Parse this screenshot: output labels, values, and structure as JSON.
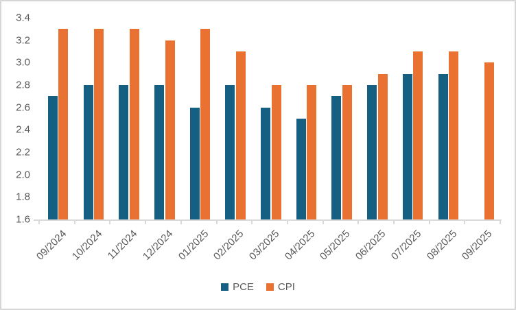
{
  "chart_data": {
    "type": "bar",
    "title": "",
    "xlabel": "",
    "ylabel": "",
    "categories": [
      "09/2024",
      "10/2024",
      "11/2024",
      "12/2024",
      "01/2025",
      "02/2025",
      "03/2025",
      "04/2025",
      "05/2025",
      "06/2025",
      "07/2025",
      "08/2025",
      "09/2025"
    ],
    "series": [
      {
        "name": "PCE",
        "color": "#156082",
        "values": [
          2.7,
          2.8,
          2.8,
          2.8,
          2.6,
          2.8,
          2.6,
          2.5,
          2.7,
          2.8,
          2.9,
          2.9,
          null
        ]
      },
      {
        "name": "CPI",
        "color": "#E97132",
        "values": [
          3.3,
          3.3,
          3.3,
          3.2,
          3.3,
          3.1,
          2.8,
          2.8,
          2.8,
          2.9,
          3.1,
          3.1,
          3.0
        ]
      }
    ],
    "ylim": [
      1.6,
      3.4
    ],
    "ytick_step": 0.2,
    "y_ticks": [
      "3.4",
      "3.2",
      "3.0",
      "2.8",
      "2.6",
      "2.4",
      "2.2",
      "2.0",
      "1.8",
      "1.6"
    ],
    "grid": false,
    "legend_position": "bottom",
    "colors": {
      "axis_line": "#D9D9D9",
      "label_text": "#595959",
      "frame_border": "#D6D6D6",
      "background": "#FFFFFF"
    }
  }
}
